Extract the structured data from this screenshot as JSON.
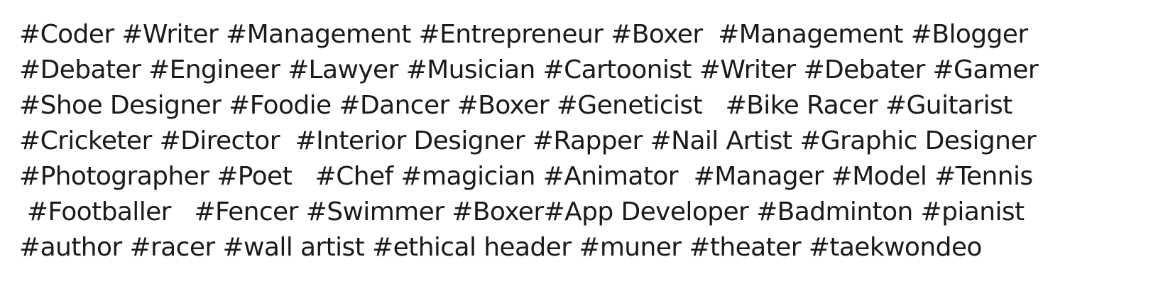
{
  "hashtags": {
    "lines": [
      "#Coder #Writer #Management #Entrepreneur #Boxer  #Management #Blogger",
      "#Debater #Engineer #Lawyer #Musician #Cartoonist #Writer #Debater #Gamer",
      "#Shoe Designer #Foodie #Dancer #Boxer #Geneticist   #Bike Racer #Guitarist",
      "#Cricketer #Director  #Interior Designer #Rapper #Nail Artist #Graphic Designer",
      "#Photographer #Poet   #Chef #magician #Animator  #Manager #Model #Tennis",
      " #Footballer   #Fencer #Swimmer #Boxer#App Developer #Badminton #pianist",
      "#author #racer #wall artist #ethical header #muner #theater #taekwondeo"
    ]
  }
}
